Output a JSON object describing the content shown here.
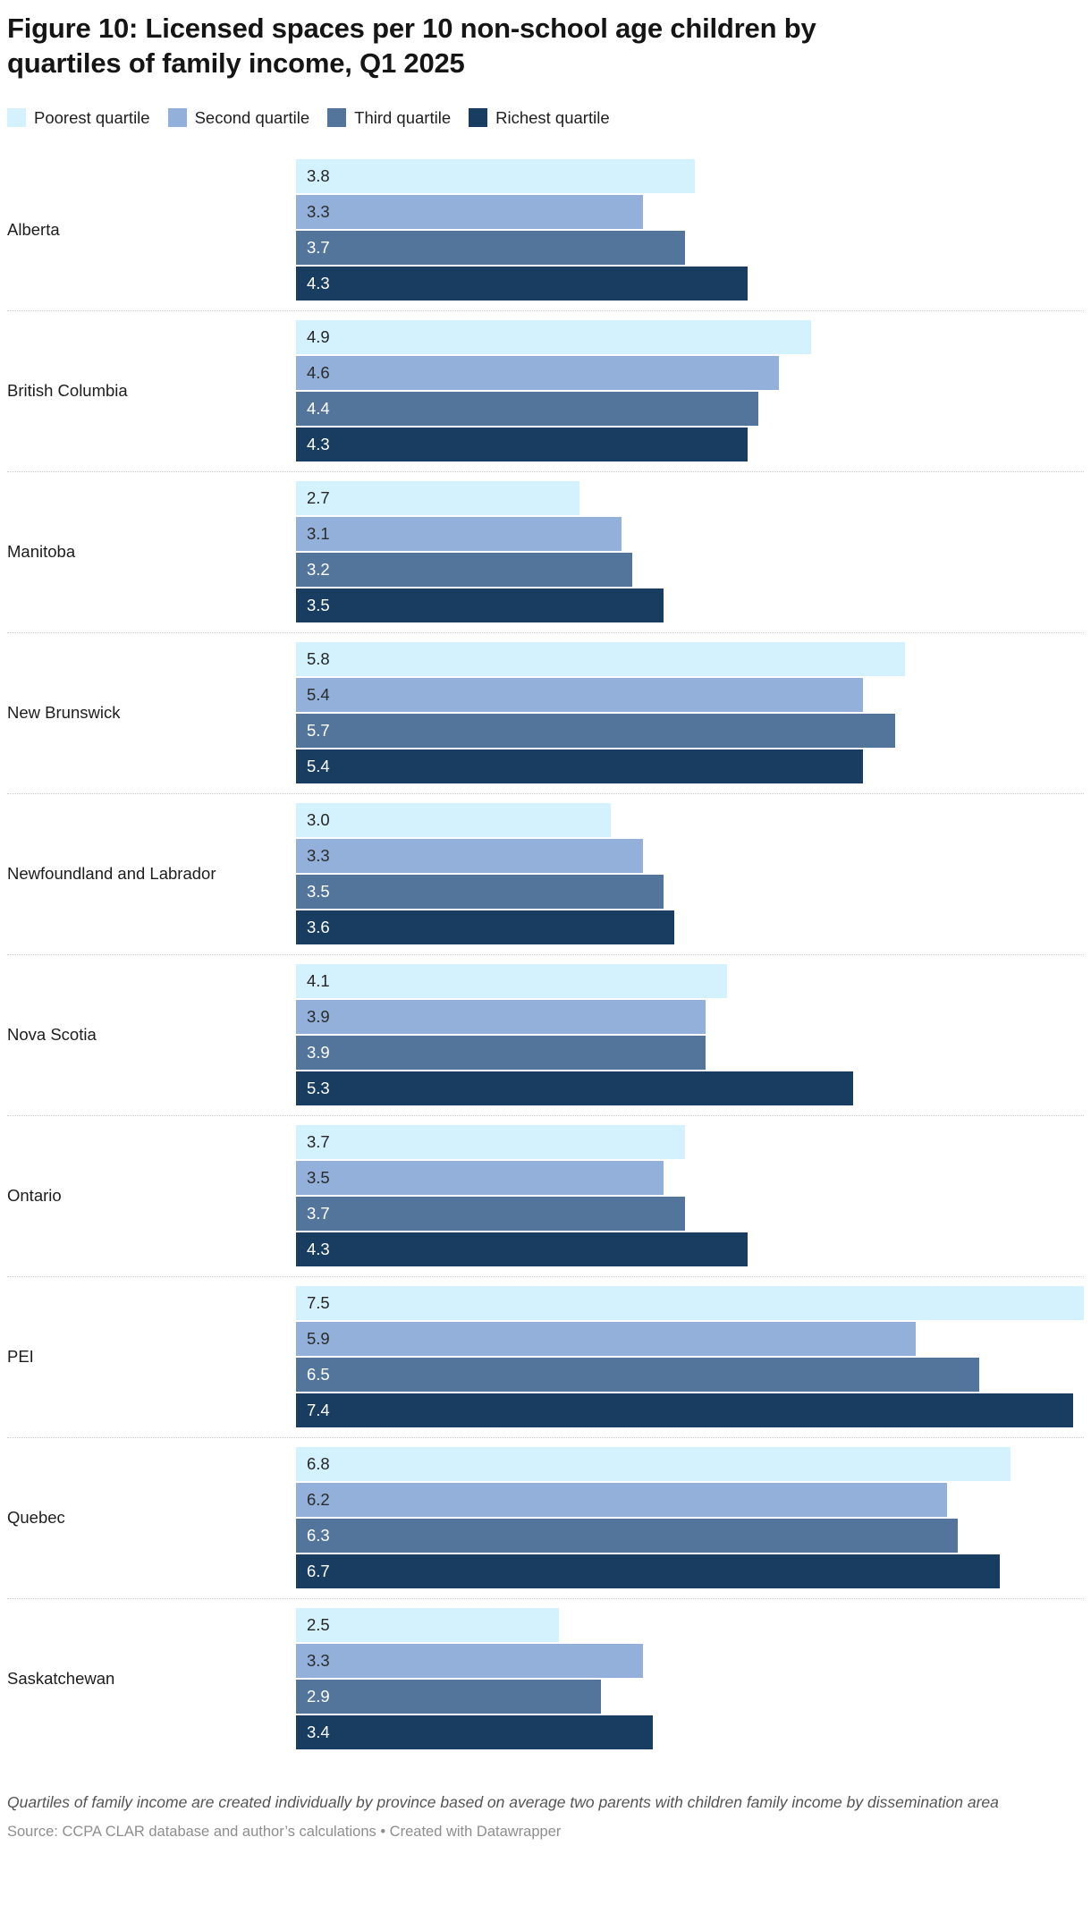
{
  "title": "Figure 10: Licensed spaces per 10 non-school age children by quartiles of family income, Q1 2025",
  "chart_data": {
    "type": "bar",
    "orientation": "horizontal",
    "title": "Figure 10: Licensed spaces per 10 non-school age children by quartiles of family income, Q1 2025",
    "value_axis_max": 7.5,
    "grid": false,
    "legend_position": "top",
    "categories": [
      "Alberta",
      "British Columbia",
      "Manitoba",
      "New Brunswick",
      "Newfoundland and Labrador",
      "Nova Scotia",
      "Ontario",
      "PEI",
      "Quebec",
      "Saskatchewan"
    ],
    "series": [
      {
        "name": "Poorest quartile",
        "color": "#d4f2fd",
        "value_label_color": "#262626",
        "values": [
          3.8,
          4.9,
          2.7,
          5.8,
          3.0,
          4.1,
          3.7,
          7.5,
          6.8,
          2.5
        ]
      },
      {
        "name": "Second quartile",
        "color": "#92b0d9",
        "value_label_color": "#2b2b2b",
        "values": [
          3.3,
          4.6,
          3.1,
          5.4,
          3.3,
          3.9,
          3.5,
          5.9,
          6.2,
          3.3
        ]
      },
      {
        "name": "Third quartile",
        "color": "#54759b",
        "value_label_color": "#ffffff",
        "values": [
          3.7,
          4.4,
          3.2,
          5.7,
          3.5,
          3.9,
          3.7,
          6.5,
          6.3,
          2.9
        ]
      },
      {
        "name": "Richest quartile",
        "color": "#183d61",
        "value_label_color": "#ffffff",
        "values": [
          4.3,
          4.3,
          3.5,
          5.4,
          3.6,
          5.3,
          4.3,
          7.4,
          6.7,
          3.4
        ]
      }
    ]
  },
  "footer": {
    "note": "Quartiles of family income are created individually by province based on average two parents with children family income by dissemination area",
    "source": "Source: CCPA CLAR database and author’s calculations • Created with Datawrapper"
  }
}
